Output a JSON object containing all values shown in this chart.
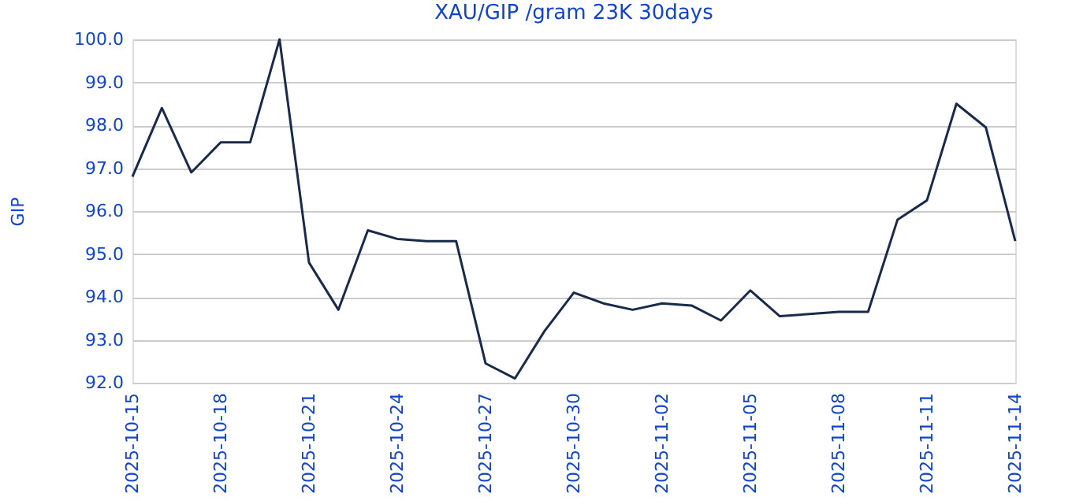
{
  "chart_data": {
    "type": "line",
    "title": "XAU/GIP /gram 23K 30days",
    "ylabel": "GIP",
    "x": [
      "2025-10-15",
      "2025-10-16",
      "2025-10-17",
      "2025-10-18",
      "2025-10-19",
      "2025-10-20",
      "2025-10-21",
      "2025-10-22",
      "2025-10-23",
      "2025-10-24",
      "2025-10-25",
      "2025-10-26",
      "2025-10-27",
      "2025-10-28",
      "2025-10-29",
      "2025-10-30",
      "2025-10-31",
      "2025-11-01",
      "2025-11-02",
      "2025-11-03",
      "2025-11-04",
      "2025-11-05",
      "2025-11-06",
      "2025-11-07",
      "2025-11-08",
      "2025-11-09",
      "2025-11-10",
      "2025-11-11",
      "2025-11-12",
      "2025-11-13",
      "2025-11-14"
    ],
    "series": [
      {
        "color": "#1a2a4a",
        "values": [
          96.8,
          98.4,
          96.9,
          97.6,
          97.6,
          100.0,
          94.8,
          93.7,
          95.55,
          95.35,
          95.3,
          95.3,
          92.45,
          92.1,
          93.2,
          94.1,
          93.85,
          93.7,
          93.85,
          93.8,
          93.45,
          94.15,
          93.55,
          93.6,
          93.65,
          93.65,
          95.8,
          96.25,
          98.5,
          97.95,
          95.3
        ]
      }
    ],
    "xlim": [
      "2025-10-15",
      "2025-11-14"
    ],
    "xticks": [
      "2025-10-15",
      "2025-10-18",
      "2025-10-21",
      "2025-10-24",
      "2025-10-27",
      "2025-10-30",
      "2025-11-02",
      "2025-11-05",
      "2025-11-08",
      "2025-11-11",
      "2025-11-14"
    ],
    "ylim": [
      92.0,
      100.0
    ],
    "yticks": [
      {
        "value": 92,
        "label": "92.0"
      },
      {
        "value": 93,
        "label": "93.0"
      },
      {
        "value": 94,
        "label": "94.0"
      },
      {
        "value": 95,
        "label": "95.0"
      },
      {
        "value": 96,
        "label": "96.0"
      },
      {
        "value": 97,
        "label": "97.0"
      },
      {
        "value": 98,
        "label": "98.0"
      },
      {
        "value": 99,
        "label": "99.0"
      },
      {
        "value": 100,
        "label": "100.0"
      }
    ],
    "grid": "y",
    "marker": "none",
    "line_style": "solid"
  }
}
